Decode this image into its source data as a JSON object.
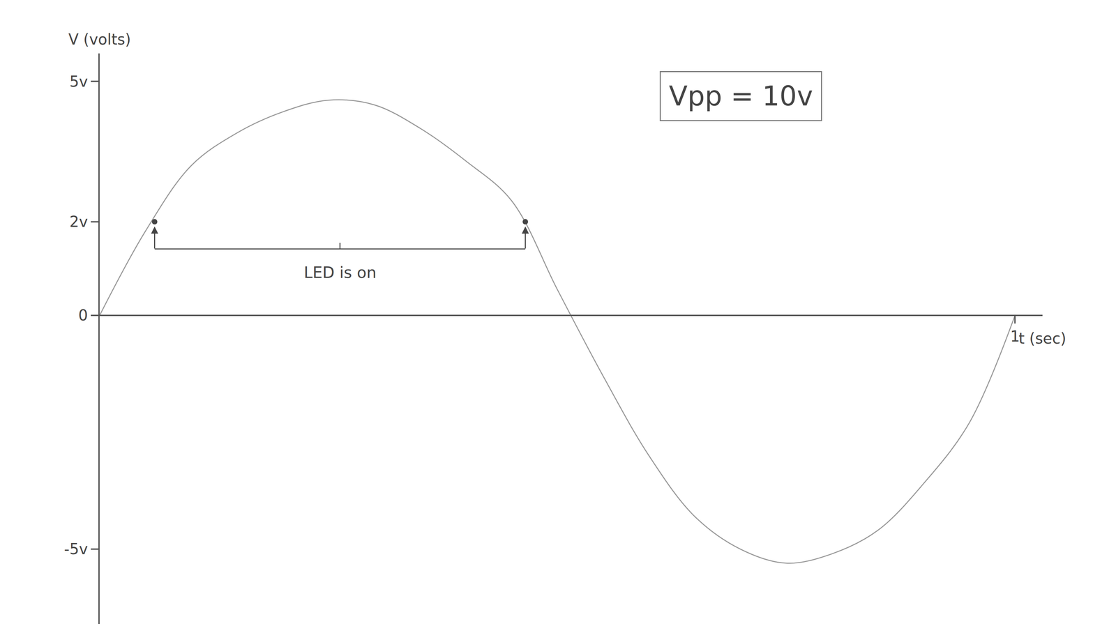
{
  "chart_data": {
    "type": "line",
    "x_label": "t (sec)",
    "y_label": "V (volts)",
    "x": [
      0,
      0.05,
      0.1,
      0.15,
      0.2,
      0.25,
      0.3,
      0.35,
      0.4,
      0.45,
      0.5,
      0.55,
      0.6,
      0.65,
      0.7,
      0.75,
      0.8,
      0.85,
      0.9,
      0.95,
      1
    ],
    "values": [
      0,
      1.8,
      3.2,
      3.9,
      4.35,
      4.6,
      4.5,
      4.0,
      3.3,
      2.45,
      0.55,
      -1.3,
      -3.0,
      -4.3,
      -5.0,
      -5.3,
      -5.1,
      -4.6,
      -3.6,
      -2.3,
      0
    ],
    "color": "#9a9a9a",
    "xlim": [
      0,
      1.03
    ],
    "ylim": [
      -6.6,
      5.6
    ],
    "xticks": [
      1
    ],
    "yticks": [
      {
        "value": 5,
        "label": "5v"
      },
      {
        "value": 2,
        "label": "2v"
      },
      0,
      {
        "value": -5,
        "label": "-5v"
      }
    ],
    "grid": false,
    "annotations": [
      {
        "text": "Vpp = 10v"
      }
    ],
    "led_on": {
      "x": [
        0.06,
        0.465
      ],
      "values": [
        2,
        2
      ],
      "label": "LED is on"
    }
  }
}
